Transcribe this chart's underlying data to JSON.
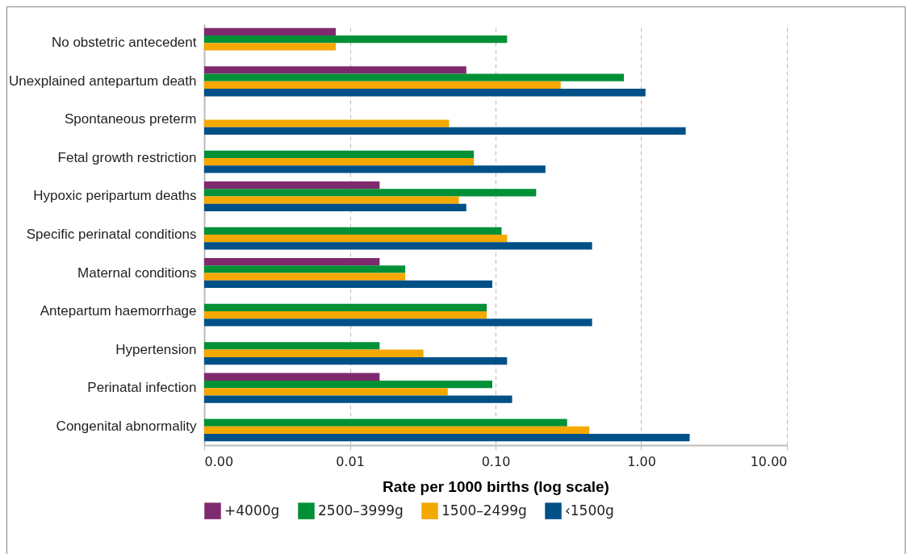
{
  "chart_data": {
    "type": "bar",
    "orientation": "horizontal",
    "log": "x",
    "xlabel": "Rate per 1000 births (log scale)",
    "categories": [
      "No obstetric antecedent",
      "Unexplained antepartum death",
      "Spontaneous preterm",
      "Fetal growth restriction",
      "Hypoxic peripartum deaths",
      "Specific perinatal conditions",
      "Maternal conditions",
      "Antepartum haemorrhage",
      "Hypertension",
      "Perinatal infection",
      "Congenital abnormality"
    ],
    "series": [
      {
        "name": "+4000g",
        "color": "#7f2a6e",
        "values": [
          0.008,
          0.063,
          null,
          null,
          0.016,
          null,
          0.016,
          null,
          null,
          0.016,
          null
        ]
      },
      {
        "name": "2500–3999g",
        "color": "#009036",
        "values": [
          0.12,
          0.76,
          null,
          0.071,
          0.19,
          0.11,
          0.024,
          0.087,
          0.016,
          0.095,
          0.31
        ]
      },
      {
        "name": "1500–2499g",
        "color": "#f5a800",
        "values": [
          0.008,
          0.28,
          0.048,
          0.071,
          0.056,
          0.12,
          0.024,
          0.087,
          0.032,
          0.047,
          0.44
        ]
      },
      {
        "name": "‹1500g",
        "color": "#005088",
        "values": [
          null,
          1.07,
          2.02,
          0.22,
          0.063,
          0.46,
          0.095,
          0.46,
          0.12,
          0.13,
          2.15
        ]
      }
    ],
    "xlim": [
      0.001,
      10
    ],
    "xticks": [
      {
        "value": 0.001,
        "label": "0.00"
      },
      {
        "value": 0.01,
        "label": "0.01"
      },
      {
        "value": 0.1,
        "label": "0.10"
      },
      {
        "value": 1,
        "label": "1.00"
      },
      {
        "value": 10,
        "label": "10.00"
      }
    ],
    "grid": "x",
    "legend": "bottom"
  }
}
